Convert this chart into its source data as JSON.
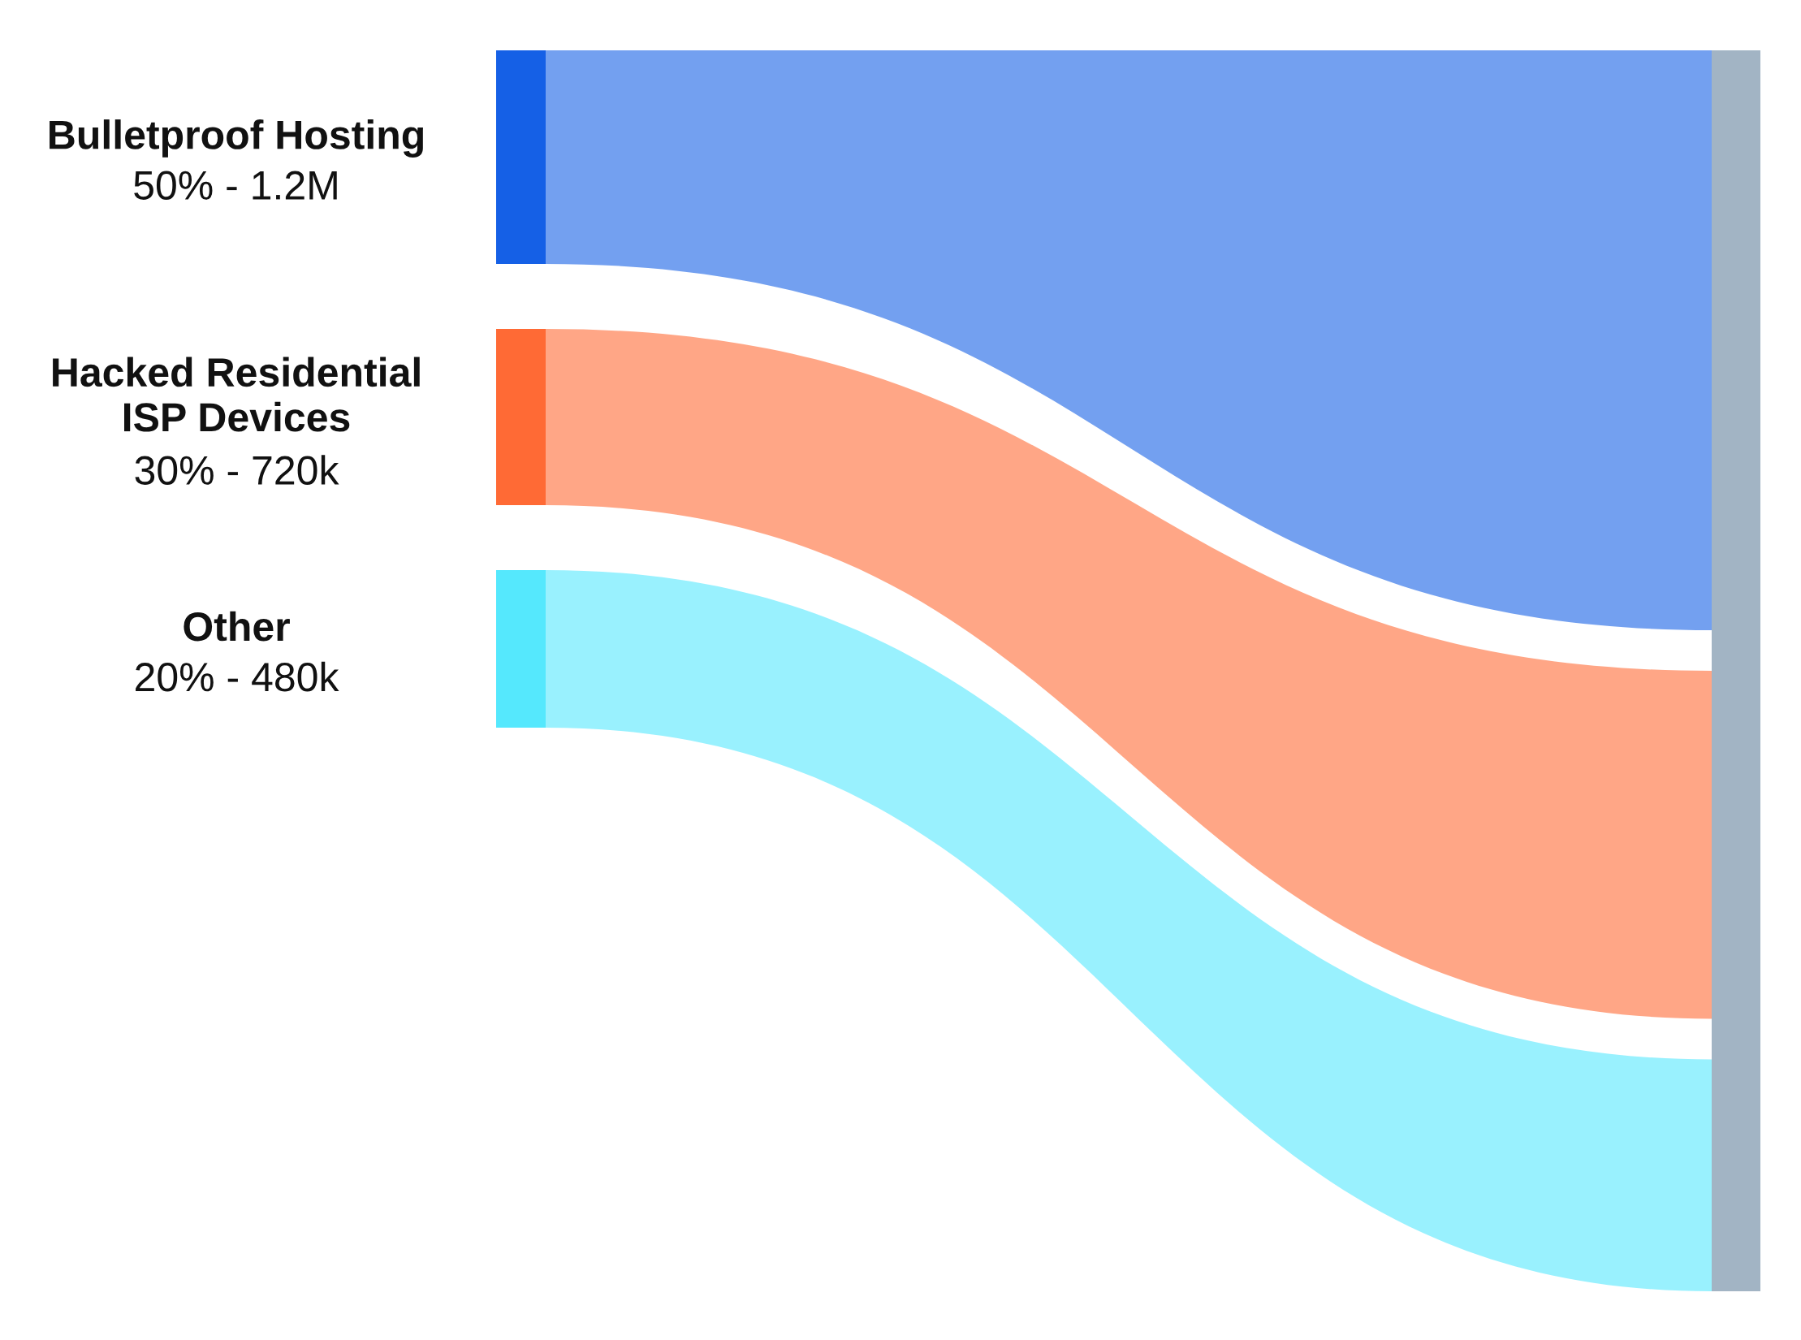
{
  "chart_data": {
    "type": "other",
    "categories": [
      "Bulletproof Hosting",
      "Hacked Residential\nISP Devices",
      "Other",
      null
    ],
    "values": [
      50,
      30,
      20,
      null
    ],
    "value_labels": [
      "50% - 1.2M",
      "30% - 720k",
      "20% - 480k",
      null
    ],
    "colors": [
      "#1560e6",
      "#ff6a35",
      "#55e8fd",
      "#a2b4c4"
    ]
  }
}
